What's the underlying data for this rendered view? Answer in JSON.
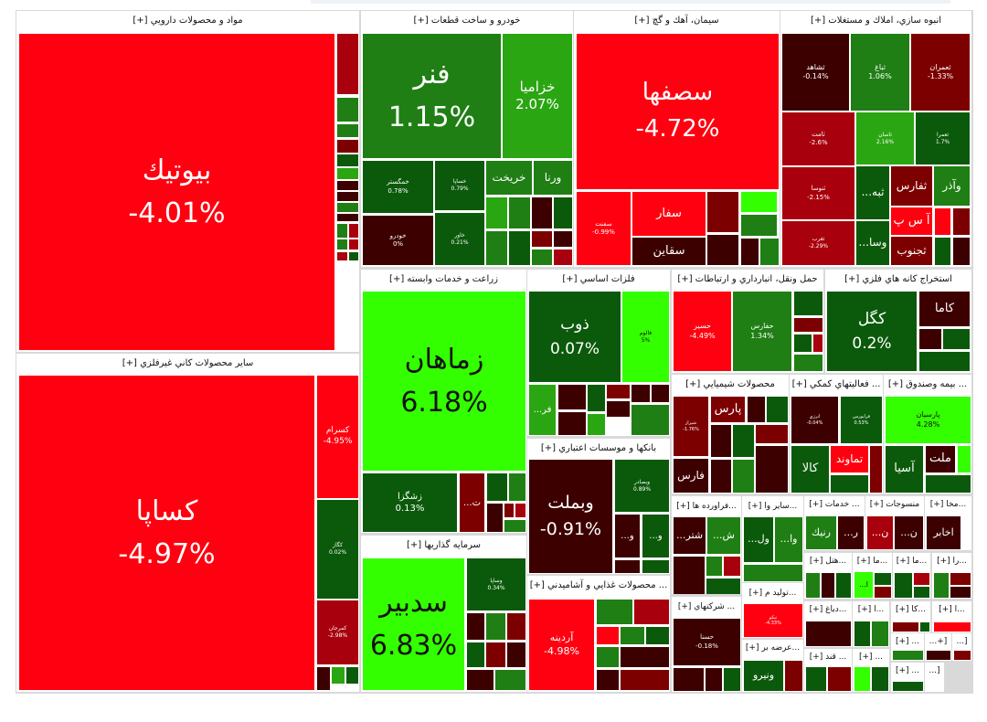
{
  "colors": {
    "bright_red": "#ff0010",
    "dark_red": "#3d0000",
    "mid_red": "#7d0000",
    "red": "#a8000c",
    "dark_green": "#0b5a0b",
    "green": "#1f7f14",
    "light_green": "#2aa612",
    "bright_green": "#33ff00"
  },
  "sectors": [
    {
      "title": "مواد و محصولات دارويي [+]",
      "tiles": [
        {
          "sym": "بيوتيك",
          "pct": "-4.01%"
        }
      ]
    },
    {
      "title": "ساير محصولات كاني غيرفلزي [+]",
      "tiles": [
        {
          "sym": "كساپا",
          "pct": "-4.97%"
        },
        {
          "sym": "كسرام",
          "pct": "-4.95%"
        },
        {
          "sym": "كگاز",
          "pct": "0.02%"
        },
        {
          "sym": "كمرجان",
          "pct": "-2.98%"
        }
      ]
    },
    {
      "title": "خودرو و ساخت قطعات [+]",
      "tiles": [
        {
          "sym": "فنر",
          "pct": "1.15%"
        },
        {
          "sym": "خزاميا",
          "pct": "2.07%"
        },
        {
          "sym": "خمگستر",
          "pct": "0.78%"
        },
        {
          "sym": "خساپا",
          "pct": "0.79%"
        },
        {
          "sym": "خودرو",
          "pct": "0%"
        },
        {
          "sym": "خاور",
          "pct": "0.21%"
        },
        {
          "sym": "خريخت"
        },
        {
          "sym": "ورنا"
        }
      ]
    },
    {
      "title": "سيمان، آهك و گچ [+]",
      "tiles": [
        {
          "sym": "سصفها",
          "pct": "-4.72%"
        },
        {
          "sym": "سفنت",
          "pct": "-0.99%"
        },
        {
          "sym": "سفار"
        },
        {
          "sym": "سقاين"
        }
      ]
    },
    {
      "title": "انبوه سازي، املاك و مستغلات [+]",
      "tiles": [
        {
          "sym": "ثشاهد",
          "pct": "-0.14%"
        },
        {
          "sym": "ثباغ",
          "pct": "1.06%"
        },
        {
          "sym": "ثعمران",
          "pct": "-1.33%"
        },
        {
          "sym": "ثامت",
          "pct": "-2.6%"
        },
        {
          "sym": "ثاسان",
          "pct": "2.16%"
        },
        {
          "sym": "ثعمرا",
          "pct": "1.7%"
        },
        {
          "sym": "ثنوسا",
          "pct": "-2.15%"
        },
        {
          "sym": "ثغرب",
          "pct": "-2.29%"
        },
        {
          "sym": "...ثبه"
        },
        {
          "sym": "ثفارس"
        },
        {
          "sym": "وآذر"
        },
        {
          "sym": "...وسا"
        },
        {
          "sym": "آ س پ"
        },
        {
          "sym": "ثجنوب"
        }
      ]
    },
    {
      "title": "زراعت و خدمات وابسته [+]",
      "tiles": [
        {
          "sym": "زماهان",
          "pct": "6.18%"
        },
        {
          "sym": "زشگزا",
          "pct": "0.13%"
        },
        {
          "sym": "...ت"
        }
      ]
    },
    {
      "title": "سرمايه گذاريها [+]",
      "tiles": [
        {
          "sym": "سدبير",
          "pct": "6.83%"
        },
        {
          "sym": "وساپا",
          "pct": "0.34%"
        }
      ]
    },
    {
      "title": "فلزات اساسي [+]",
      "tiles": [
        {
          "sym": "ذوب",
          "pct": "0.07%"
        },
        {
          "sym": "فالوم",
          "pct": "5%"
        },
        {
          "sym": "...فر"
        }
      ]
    },
    {
      "title": "بانكها و موسسات اعتباري [+]",
      "tiles": [
        {
          "sym": "وبملت",
          "pct": "-0.91%"
        },
        {
          "sym": "وبصادر",
          "pct": "0.89%"
        },
        {
          "sym": "...و"
        },
        {
          "sym": "...و"
        }
      ]
    },
    {
      "title": "... محصولات غذايي و آشاميدني [+]",
      "tiles": [
        {
          "sym": "آردينه",
          "pct": "-4.98%"
        }
      ]
    },
    {
      "title": "حمل ونقل، انبارداري و ارتباطات [+]",
      "tiles": [
        {
          "sym": "حسير",
          "pct": "-4.49%"
        },
        {
          "sym": "حفارس",
          "pct": "1.34%"
        }
      ]
    },
    {
      "title": "استخراج كانه هاي فلزي [+]",
      "tiles": [
        {
          "sym": "كگل",
          "pct": "0.2%"
        },
        {
          "sym": "كاما"
        }
      ]
    },
    {
      "title": "محصولات شيميايي [+]",
      "tiles": [
        {
          "sym": "شيراز",
          "pct": "-1.76%"
        },
        {
          "sym": "پارس"
        },
        {
          "sym": "فارس"
        }
      ]
    },
    {
      "title": "... فعاليتهاي كمكي [+]",
      "tiles": [
        {
          "sym": "انرژي",
          "pct": "-0.04%"
        },
        {
          "sym": "فرابورس",
          "pct": "0.53%"
        },
        {
          "sym": "كالا"
        },
        {
          "sym": "تماوند"
        }
      ]
    },
    {
      "title": "... بيمه وصندوق [+]",
      "tiles": [
        {
          "sym": "پارسيان",
          "pct": "4.28%"
        },
        {
          "sym": "آسيا"
        },
        {
          "sym": "ملت"
        }
      ]
    },
    {
      "title": "...فراورده ها [+]",
      "tiles": [
        {
          "sym": "...شتر"
        },
        {
          "sym": "...ش"
        }
      ]
    },
    {
      "title": "...ساير وا [+]",
      "tiles": [
        {
          "sym": "...ول"
        },
        {
          "sym": "...وا"
        }
      ]
    },
    {
      "title": "...توليد م [+]",
      "tiles": [
        {
          "sym": "تپكو",
          "pct": "-4.33%"
        }
      ]
    },
    {
      "title": "...عرضه بر [+]",
      "tiles": [
        {
          "sym": "ونيرو"
        }
      ]
    },
    {
      "title": "... شركتهاي [+]",
      "tiles": [
        {
          "sym": "حسنا",
          "pct": "-0.18%"
        }
      ]
    },
    {
      "title": "... خدمات [+]",
      "tiles": [
        {
          "sym": "رنيك"
        },
        {
          "sym": "...ر"
        }
      ]
    },
    {
      "title": "منسوجات [+]",
      "tiles": [
        {
          "sym": "...ن"
        },
        {
          "sym": "...ن"
        }
      ]
    },
    {
      "title": "...مخا [+]",
      "tiles": [
        {
          "sym": "اخابر"
        }
      ]
    },
    {
      "title": "...هتل [+]",
      "tiles": []
    },
    {
      "title": "...ما [+]",
      "tiles": [
        {
          "sym": "...ا"
        }
      ]
    },
    {
      "title": "...ما [+]",
      "tiles": []
    },
    {
      "title": "...را [+]",
      "tiles": []
    },
    {
      "title": "...دباغ [+]",
      "tiles": []
    },
    {
      "title": "...ا [+]",
      "tiles": []
    },
    {
      "title": "...كا [+]",
      "tiles": []
    },
    {
      "title": "...ا [+]",
      "tiles": []
    },
    {
      "title": "... قند [+]",
      "tiles": []
    },
    {
      "title": "... [+]",
      "tiles": []
    },
    {
      "title": "... [+]",
      "tiles": []
    },
    {
      "title": "[+...",
      "tiles": []
    },
    {
      "title": "[...",
      "tiles": []
    },
    {
      "title": "... [+]",
      "tiles": []
    },
    {
      "title": "[...",
      "tiles": []
    }
  ]
}
